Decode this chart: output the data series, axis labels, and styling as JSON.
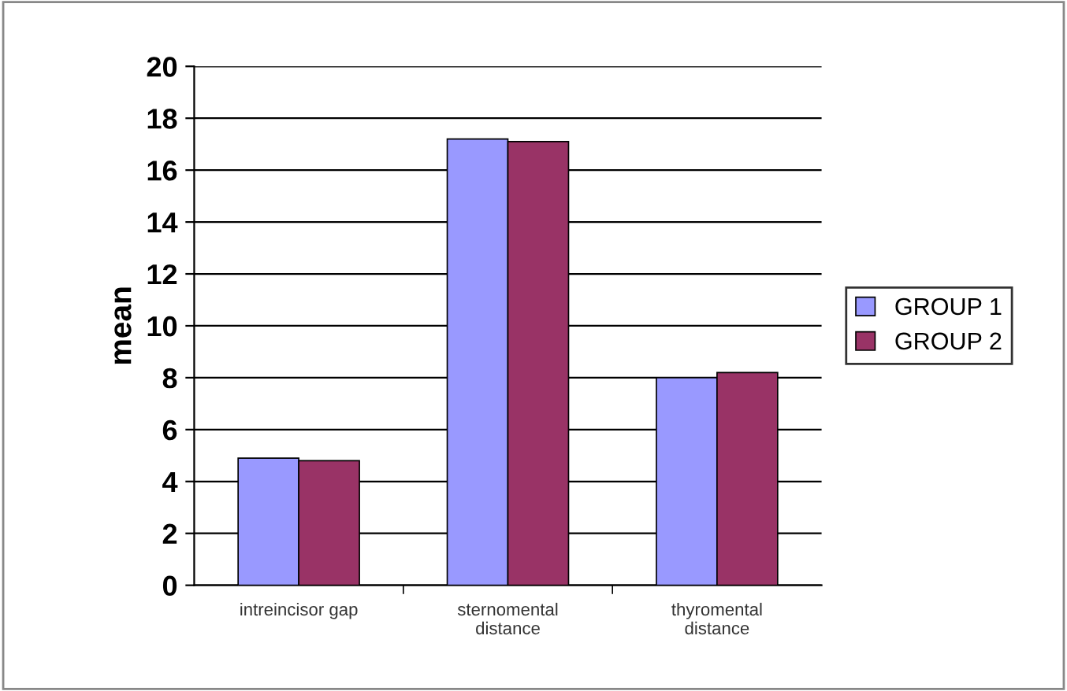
{
  "chart_data": {
    "type": "bar",
    "ylabel": "mean",
    "categories": [
      "intreincisor gap",
      "sternomental\ndistance",
      "thyromental\ndistance"
    ],
    "series": [
      {
        "name": "GROUP 1",
        "color": "#9999ff",
        "values": [
          4.9,
          17.2,
          8.0
        ]
      },
      {
        "name": "GROUP 2",
        "color": "#993366",
        "values": [
          4.8,
          17.1,
          8.2
        ]
      }
    ],
    "ylim": [
      0,
      20
    ],
    "yticks": [
      0,
      2,
      4,
      6,
      8,
      10,
      12,
      14,
      16,
      18,
      20
    ],
    "grid": "y",
    "legend": "right"
  }
}
